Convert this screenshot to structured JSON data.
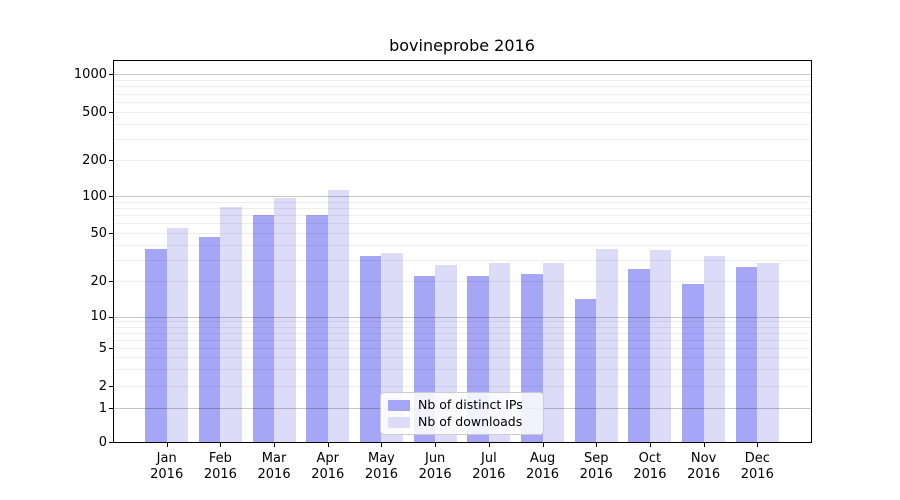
{
  "title": "bovineprobe 2016",
  "colors": {
    "distinct_ips_bar": "#a6a6f6",
    "downloads_bar": "#dcdcf9",
    "major_gridline": "rgba(0,0,0,0.22)",
    "minor_gridline": "rgba(0,0,0,0.065)",
    "spine": "#000000",
    "legend_border": "#cccccc"
  },
  "legend": {
    "entries": [
      {
        "label": "Nb of distinct IPs"
      },
      {
        "label": "Nb of downloads"
      }
    ]
  },
  "chart_data": {
    "type": "bar",
    "title": "bovineprobe 2016",
    "x_categories": [
      "Jan 2016",
      "Feb 2016",
      "Mar 2016",
      "Apr 2016",
      "May 2016",
      "Jun 2016",
      "Jul 2016",
      "Aug 2016",
      "Sep 2016",
      "Oct 2016",
      "Nov 2016",
      "Dec 2016"
    ],
    "x_tick_months": [
      "Jan",
      "Feb",
      "Mar",
      "Apr",
      "May",
      "Jun",
      "Jul",
      "Aug",
      "Sep",
      "Oct",
      "Nov",
      "Dec"
    ],
    "x_tick_year": "2016",
    "y_scale": "symlog",
    "ylim": [
      0,
      1000
    ],
    "y_tick_values": [
      0,
      1,
      2,
      5,
      10,
      20,
      50,
      100,
      200,
      500,
      1000
    ],
    "y_tick_labels": [
      "0",
      "1",
      "2",
      "5",
      "10",
      "20",
      "50",
      "100",
      "200",
      "500",
      "1000"
    ],
    "grid": true,
    "legend_position": "inside lower-center",
    "series": [
      {
        "name": "Nb of distinct IPs",
        "color": "#a6a6f6",
        "values": [
          37,
          46,
          70,
          70,
          32,
          22,
          22,
          23,
          14,
          25,
          19,
          26
        ]
      },
      {
        "name": "Nb of downloads",
        "color": "#dcdcf9",
        "values": [
          55,
          82,
          97,
          113,
          34,
          27,
          28,
          28,
          37,
          36,
          32,
          28
        ]
      }
    ]
  }
}
